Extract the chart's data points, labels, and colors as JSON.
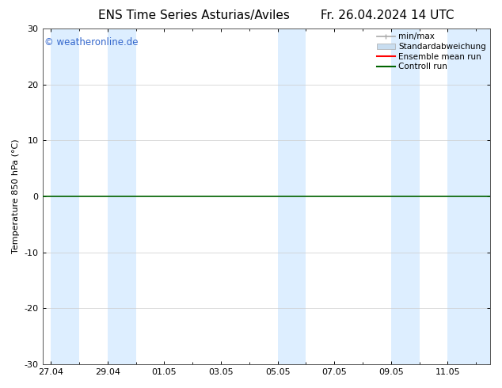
{
  "title": "ENS Time Series Asturias/Aviles",
  "title_right": "Fr. 26.04.2024 14 UTC",
  "ylabel": "Temperature 850 hPa (°C)",
  "watermark": "© weatheronline.de",
  "watermark_color": "#3366cc",
  "ylim": [
    -30,
    30
  ],
  "yticks": [
    -30,
    -20,
    -10,
    0,
    10,
    20,
    30
  ],
  "xtick_labels": [
    "27.04",
    "29.04",
    "01.05",
    "03.05",
    "05.05",
    "07.05",
    "09.05",
    "11.05"
  ],
  "background_color": "#ffffff",
  "plot_bg_color": "#ffffff",
  "shaded_band_color": "#ddeeff",
  "zero_line_color": "#006400",
  "zero_line_value": 0,
  "ensemble_mean_color": "#ff0000",
  "control_run_color": "#006400",
  "minmax_color": "#aaaaaa",
  "std_color": "#c8ddf0",
  "legend_labels": [
    "min/max",
    "Standardabweichung",
    "Ensemble mean run",
    "Controll run"
  ],
  "legend_colors": [
    "#aaaaaa",
    "#c8ddf0",
    "#ff0000",
    "#006400"
  ],
  "title_fontsize": 11,
  "ylabel_fontsize": 8,
  "tick_fontsize": 8,
  "watermark_fontsize": 8.5,
  "legend_fontsize": 7.5
}
